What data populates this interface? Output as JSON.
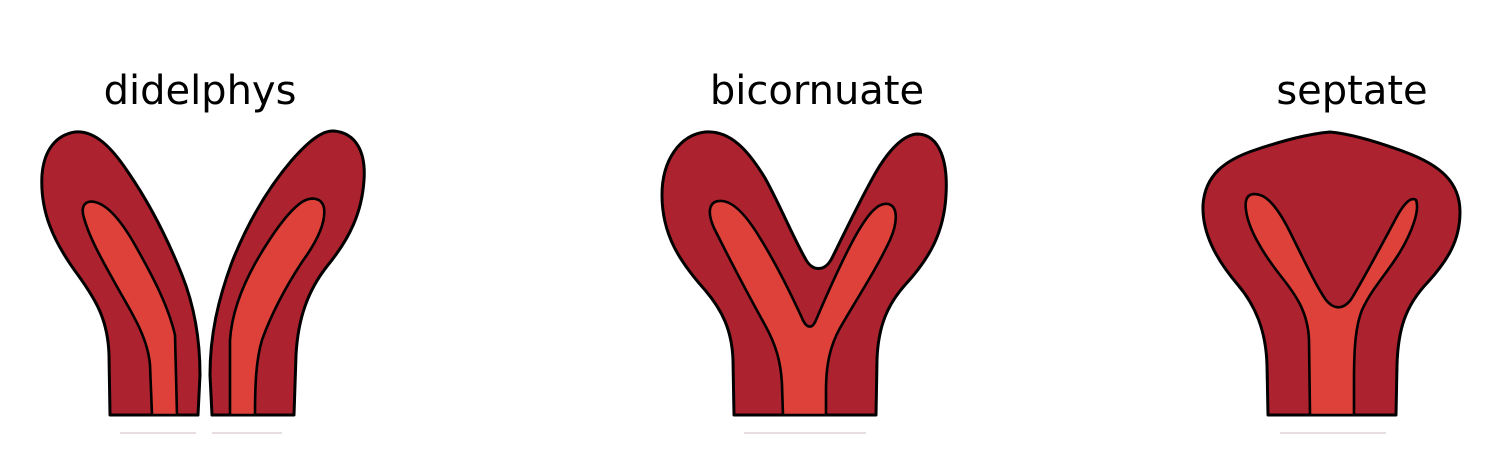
{
  "labels": {
    "didelphys": "didelphys",
    "bicornuate": "bicornuate",
    "septate": "septate"
  },
  "colors": {
    "outer_tissue": "#ad222f",
    "inner_cavity": "#de413a",
    "outline": "#000000",
    "background": "#ffffff"
  }
}
